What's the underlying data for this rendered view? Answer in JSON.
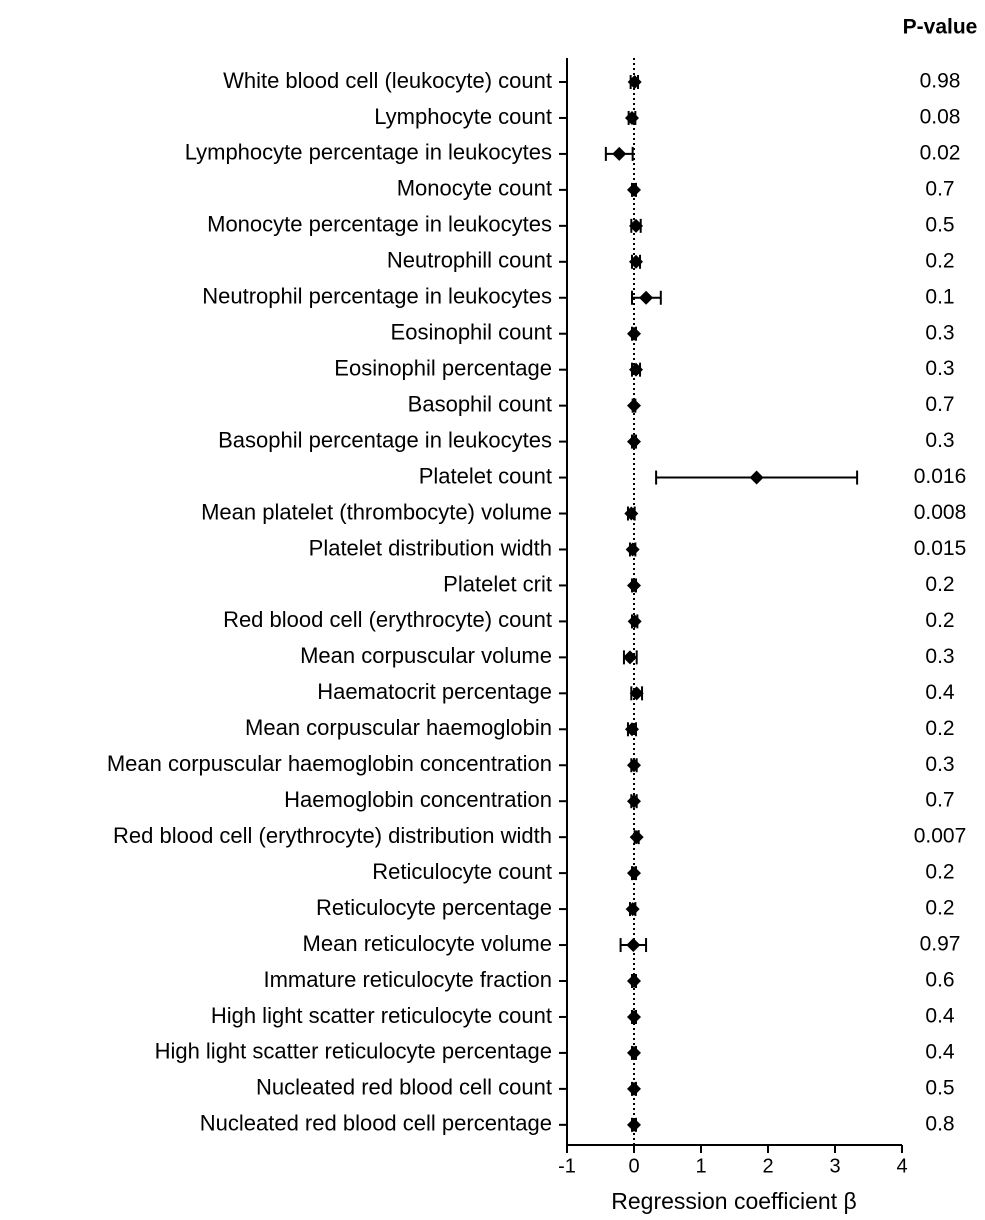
{
  "chart_data": {
    "type": "forest",
    "xlabel": "Regression coefficient β",
    "pvalue_header": "P-value",
    "categories": [
      "White blood cell (leukocyte) count",
      "Lymphocyte count",
      "Lymphocyte percentage in leukocytes",
      "Monocyte count",
      "Monocyte percentage in leukocytes",
      "Neutrophill count",
      "Neutrophil percentage in leukocytes",
      "Eosinophil count",
      "Eosinophil percentage",
      "Basophil count",
      "Basophil percentage in leukocytes",
      "Platelet count",
      "Mean platelet (thrombocyte) volume",
      "Platelet distribution width",
      "Platelet crit",
      "Red blood cell (erythrocyte) count",
      "Mean corpuscular volume",
      "Haematocrit percentage",
      "Mean corpuscular haemoglobin",
      "Mean corpuscular haemoglobin concentration",
      "Haemoglobin concentration",
      "Red blood cell (erythrocyte) distribution width",
      "Reticulocyte count",
      "Reticulocyte percentage",
      "Mean reticulocyte volume",
      "Immature reticulocyte fraction",
      "High light scatter reticulocyte count",
      "High light scatter reticulocyte percentage",
      "Nucleated red blood cell count",
      "Nucleated red blood cell percentage"
    ],
    "values": [
      0.01,
      -0.03,
      -0.22,
      0,
      0.03,
      0.03,
      0.18,
      0,
      0.03,
      0,
      0,
      1.83,
      -0.04,
      -0.02,
      0,
      0.01,
      -0.06,
      0.04,
      -0.03,
      0,
      0,
      0.04,
      0,
      -0.02,
      -0.01,
      0,
      0,
      0,
      0,
      0
    ],
    "ci_low": [
      -0.05,
      -0.08,
      -0.42,
      -0.03,
      -0.04,
      -0.03,
      -0.03,
      -0.03,
      -0.03,
      -0.02,
      -0.03,
      0.33,
      -0.09,
      -0.06,
      -0.03,
      -0.03,
      -0.15,
      -0.04,
      -0.09,
      -0.04,
      -0.04,
      0.01,
      -0.03,
      -0.06,
      -0.2,
      -0.03,
      -0.03,
      -0.03,
      -0.03,
      -0.03
    ],
    "ci_high": [
      0.06,
      0.02,
      -0.02,
      0.03,
      0.1,
      0.09,
      0.4,
      0.03,
      0.09,
      0.02,
      0.03,
      3.33,
      0.01,
      0.02,
      0.03,
      0.05,
      0.04,
      0.12,
      0.03,
      0.04,
      0.04,
      0.07,
      0.03,
      0.02,
      0.18,
      0.03,
      0.03,
      0.03,
      0.03,
      0.03
    ],
    "p_values": [
      0.98,
      0.08,
      0.02,
      0.7,
      0.5,
      0.2,
      0.1,
      0.3,
      0.3,
      0.7,
      0.3,
      0.016,
      0.008,
      0.015,
      0.2,
      0.2,
      0.3,
      0.4,
      0.2,
      0.3,
      0.7,
      0.007,
      0.2,
      0.2,
      0.97,
      0.6,
      0.4,
      0.4,
      0.5,
      0.8
    ],
    "xlim": [
      -1,
      4
    ],
    "xticks": [
      -1,
      0,
      1,
      2,
      3,
      4
    ],
    "reference_line": 0,
    "color": "#000000"
  }
}
